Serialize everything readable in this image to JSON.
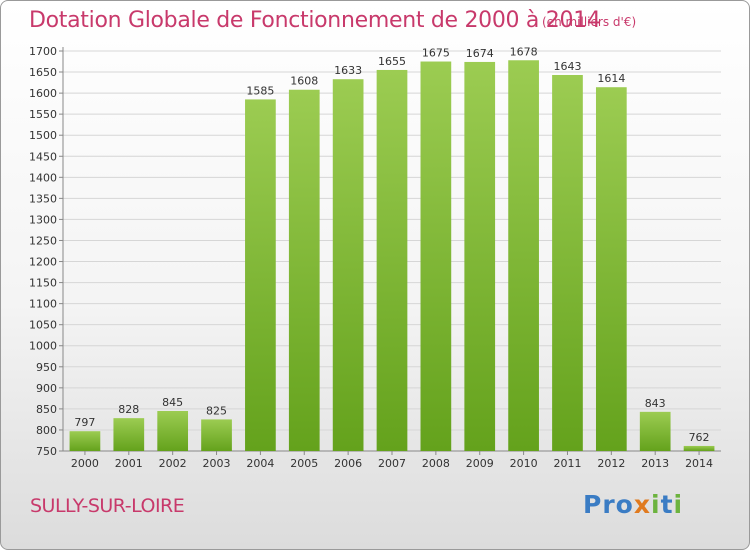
{
  "title": "Dotation Globale de Fonctionnement de 2000 à 2014",
  "unit_note": "(en milliers d'€)",
  "commune": "SULLY-SUR-LOIRE",
  "logo": {
    "text": "Proxiti",
    "colors": [
      "#3a7cc4",
      "#e07a1f",
      "#6cb33e"
    ]
  },
  "colors": {
    "bar_top": "#9ccc52",
    "bar_bottom": "#64a21c",
    "title": "#c8396b",
    "grid": "#d6d6d6"
  },
  "chart_data": {
    "type": "bar",
    "categories": [
      "2000",
      "2001",
      "2002",
      "2003",
      "2004",
      "2005",
      "2006",
      "2007",
      "2008",
      "2009",
      "2010",
      "2011",
      "2012",
      "2013",
      "2014"
    ],
    "values": [
      797,
      828,
      845,
      825,
      1585,
      1608,
      1633,
      1655,
      1675,
      1674,
      1678,
      1643,
      1614,
      843,
      762
    ],
    "ylim": [
      750,
      1700
    ],
    "yticks": [
      750,
      800,
      850,
      900,
      950,
      1000,
      1050,
      1100,
      1150,
      1200,
      1250,
      1300,
      1350,
      1400,
      1450,
      1500,
      1550,
      1600,
      1650,
      1700
    ],
    "grid": true,
    "xlabel": "",
    "ylabel": ""
  }
}
